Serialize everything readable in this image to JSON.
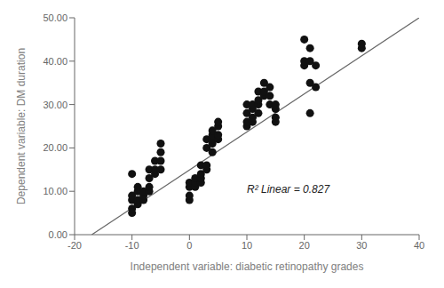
{
  "chart_data": {
    "type": "scatter",
    "x": [
      -10,
      -10,
      -10,
      -10,
      -10,
      -9,
      -9,
      -9,
      -9,
      -8,
      -8,
      -8,
      -7,
      -7,
      -7,
      -7,
      -6,
      -6,
      -6,
      -5,
      -5,
      -5,
      -5,
      0,
      0,
      0,
      0,
      1,
      1,
      1,
      2,
      2,
      2,
      2,
      3,
      3,
      3,
      3,
      4,
      4,
      4,
      4,
      4,
      5,
      5,
      5,
      5,
      10,
      10,
      10,
      10,
      11,
      11,
      11,
      11,
      12,
      12,
      12,
      12,
      13,
      13,
      13,
      14,
      14,
      14,
      15,
      15,
      15,
      15,
      20,
      20,
      20,
      21,
      21,
      21,
      21,
      22,
      22,
      30,
      30
    ],
    "values": [
      5,
      6,
      8,
      9,
      14,
      7,
      8,
      10,
      11,
      8,
      9,
      10,
      10,
      11,
      13,
      15,
      14,
      15,
      17,
      15,
      17,
      19,
      21,
      8,
      9,
      11,
      12,
      11,
      12,
      13,
      12,
      13,
      14,
      16,
      15,
      16,
      20,
      22,
      19,
      21,
      22,
      23,
      24,
      22,
      23,
      25,
      26,
      25,
      26,
      28,
      30,
      26,
      27,
      29,
      30,
      28,
      30,
      31,
      33,
      32,
      33,
      35,
      30,
      32,
      34,
      26,
      27,
      29,
      30,
      39,
      40,
      45,
      28,
      35,
      40,
      43,
      34,
      39,
      43,
      44
    ],
    "color": "#111111",
    "fit_line": {
      "x": [
        -17,
        40
      ],
      "y": [
        0,
        50
      ],
      "color": "#666666"
    },
    "annotations": [
      {
        "text": "R² Linear = 0.827",
        "x": 10,
        "y": 9
      }
    ],
    "xlabel": "Independent variable: diabetic retinopathy grades",
    "ylabel": "Dependent variable: DM duration",
    "xlim": [
      -20,
      40
    ],
    "ylim": [
      0,
      50
    ],
    "xticks": [
      -20,
      -10,
      0,
      10,
      20,
      30,
      40
    ],
    "yticks": [
      {
        "value": 0,
        "label": "0.00"
      },
      {
        "value": 10,
        "label": "10.00"
      },
      {
        "value": 20,
        "label": "20.00"
      },
      {
        "value": 30,
        "label": "30.00"
      },
      {
        "value": 40,
        "label": "40.00"
      },
      {
        "value": 50,
        "label": "50.00"
      }
    ],
    "grid": false
  }
}
